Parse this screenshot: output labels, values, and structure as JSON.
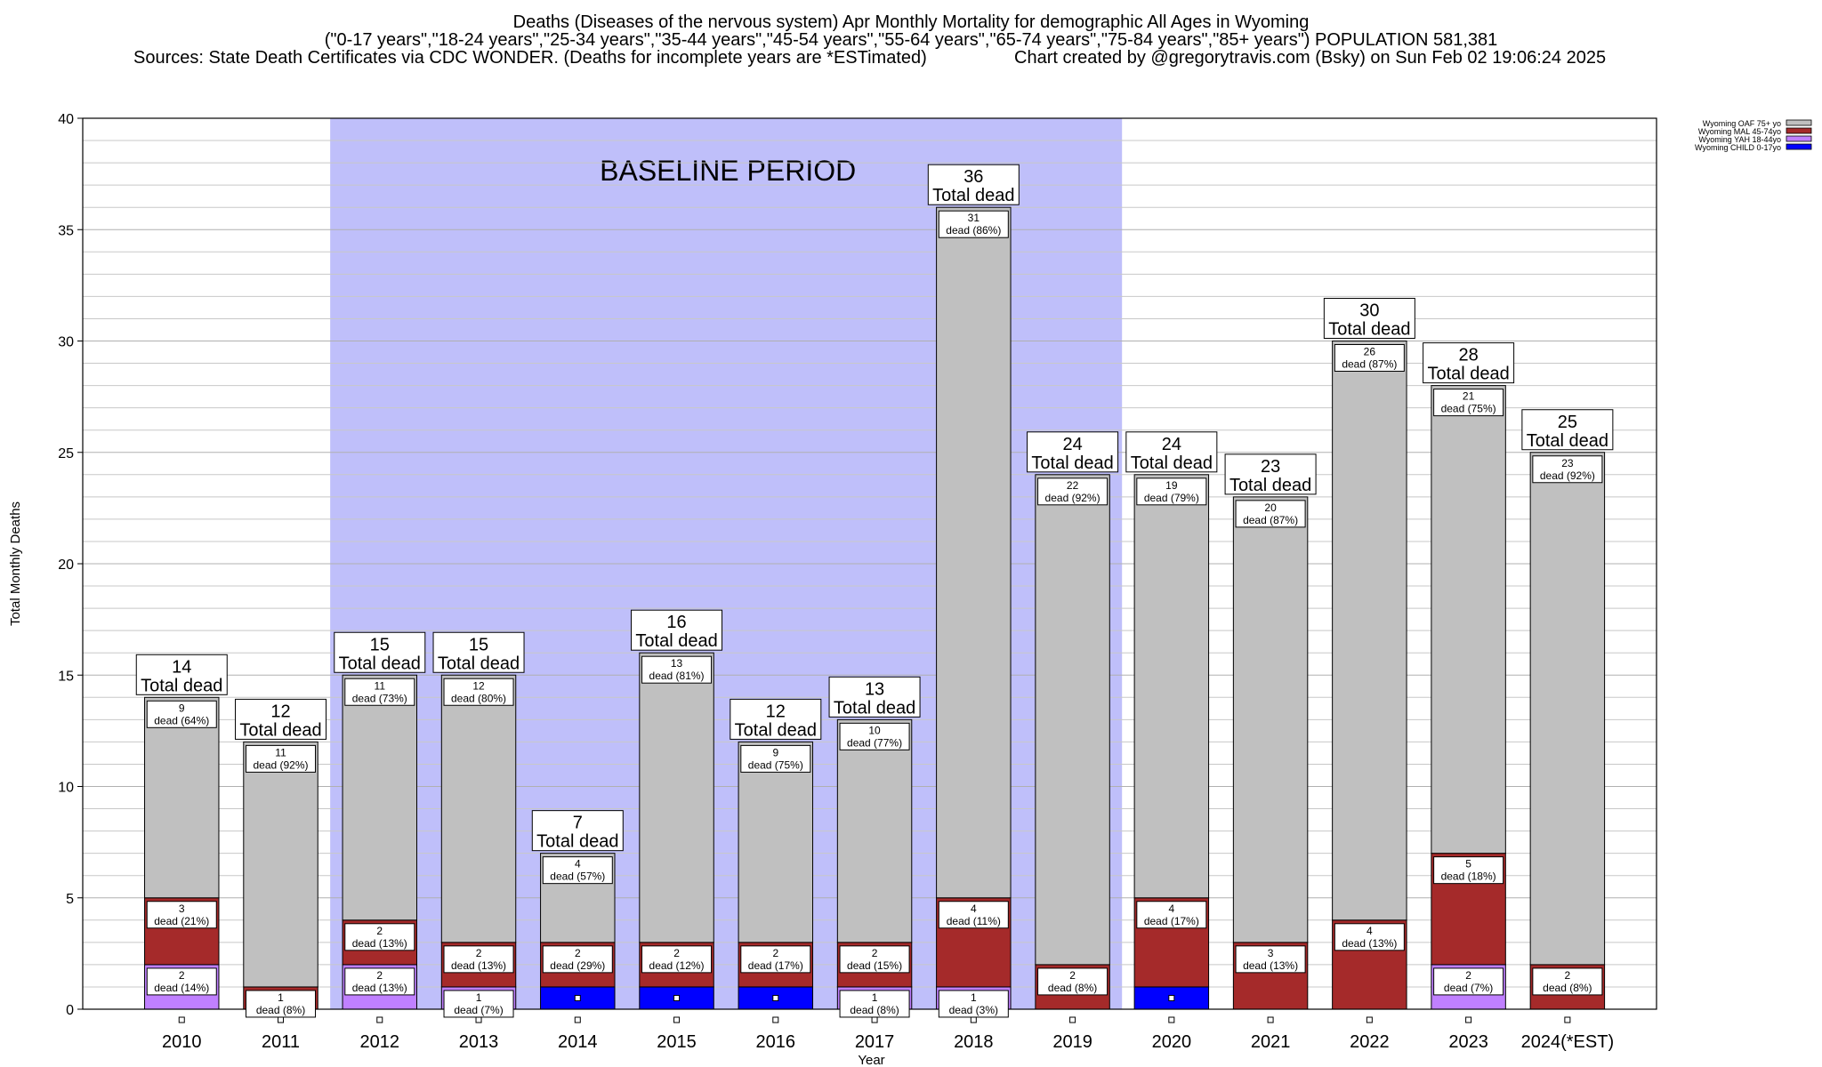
{
  "header": {
    "title_line1": "Deaths (Diseases of the nervous system) Apr Monthly Mortality for demographic All Ages in Wyoming",
    "title_line2": "(\"0-17 years\",\"18-24 years\",\"25-34 years\",\"35-44 years\",\"45-54 years\",\"55-64 years\",\"65-74 years\",\"75-84 years\",\"85+ years\") POPULATION 581,381",
    "sources": "Sources: State Death Certificates via CDC WONDER. (Deaths for incomplete years are *ESTimated)",
    "credit": "Chart created by @gregorytravis.com (Bsky) on Sun Feb 02 19:06:24 2025"
  },
  "colors": {
    "oaf": "#c0c0c0",
    "mal": "#a52a2a",
    "yah": "#c080ff",
    "child": "#0000ff",
    "baseline": "#bfbffa"
  },
  "chart_data": {
    "type": "bar",
    "stacked": true,
    "xlabel": "Year",
    "ylabel": "Total Monthly Deaths",
    "ylim": [
      0,
      40
    ],
    "yticks": [
      0,
      5,
      10,
      15,
      20,
      25,
      30,
      35,
      40
    ],
    "grid": true,
    "legend_position": "top-right",
    "baseline_label": "BASELINE PERIOD",
    "baseline_range": [
      "2012",
      "2019"
    ],
    "total_suffix": "Total dead",
    "categories": [
      "2010",
      "2011",
      "2012",
      "2013",
      "2014",
      "2015",
      "2016",
      "2017",
      "2018",
      "2019",
      "2020",
      "2021",
      "2022",
      "2023",
      "2024(*EST)"
    ],
    "totals": [
      14,
      12,
      15,
      15,
      7,
      16,
      12,
      13,
      36,
      24,
      24,
      23,
      30,
      28,
      25
    ],
    "series": [
      {
        "name": "Wyoming CHILD 0-17yo",
        "key": "child",
        "values": [
          0,
          0,
          0,
          0,
          1,
          1,
          1,
          0,
          0,
          0,
          1,
          0,
          0,
          0,
          0
        ],
        "labels": [
          "",
          "",
          "",
          "",
          "",
          "",
          "",
          "",
          "",
          "",
          "",
          "",
          "",
          "",
          ""
        ]
      },
      {
        "name": "Wyoming YAH 18-44yo",
        "key": "yah",
        "values": [
          2,
          0,
          2,
          1,
          0,
          0,
          0,
          1,
          1,
          0,
          0,
          0,
          0,
          2,
          0
        ],
        "labels": [
          "2 dead (14%)",
          "",
          "2 dead (13%)",
          "1 dead (7%)",
          "",
          "",
          "",
          "1 dead (8%)",
          "1 dead (3%)",
          "",
          "",
          "",
          "",
          "2 dead (7%)",
          ""
        ]
      },
      {
        "name": "Wyoming MAL 45-74yo",
        "key": "mal",
        "values": [
          3,
          1,
          2,
          2,
          2,
          2,
          2,
          2,
          4,
          2,
          4,
          3,
          4,
          5,
          2
        ],
        "labels": [
          "3 dead (21%)",
          "1 dead (8%)",
          "2 dead (13%)",
          "2 dead (13%)",
          "2 dead (29%)",
          "2 dead (12%)",
          "2 dead (17%)",
          "2 dead (15%)",
          "4 dead (11%)",
          "2 dead (8%)",
          "4 dead (17%)",
          "3 dead (13%)",
          "4 dead (13%)",
          "5 dead (18%)",
          "2 dead (8%)"
        ]
      },
      {
        "name": "Wyoming OAF 75+ yo",
        "key": "oaf",
        "values": [
          9,
          11,
          11,
          12,
          4,
          13,
          9,
          10,
          31,
          22,
          19,
          20,
          26,
          21,
          23
        ],
        "labels": [
          "9 dead (64%)",
          "11 dead (92%)",
          "11 dead (73%)",
          "12 dead (80%)",
          "4 dead (57%)",
          "13 dead (81%)",
          "9 dead (75%)",
          "10 dead (77%)",
          "31 dead (86%)",
          "22 dead (92%)",
          "19 dead (79%)",
          "20 dead (87%)",
          "26 dead (87%)",
          "21 dead (75%)",
          "23 dead (92%)"
        ]
      }
    ]
  }
}
